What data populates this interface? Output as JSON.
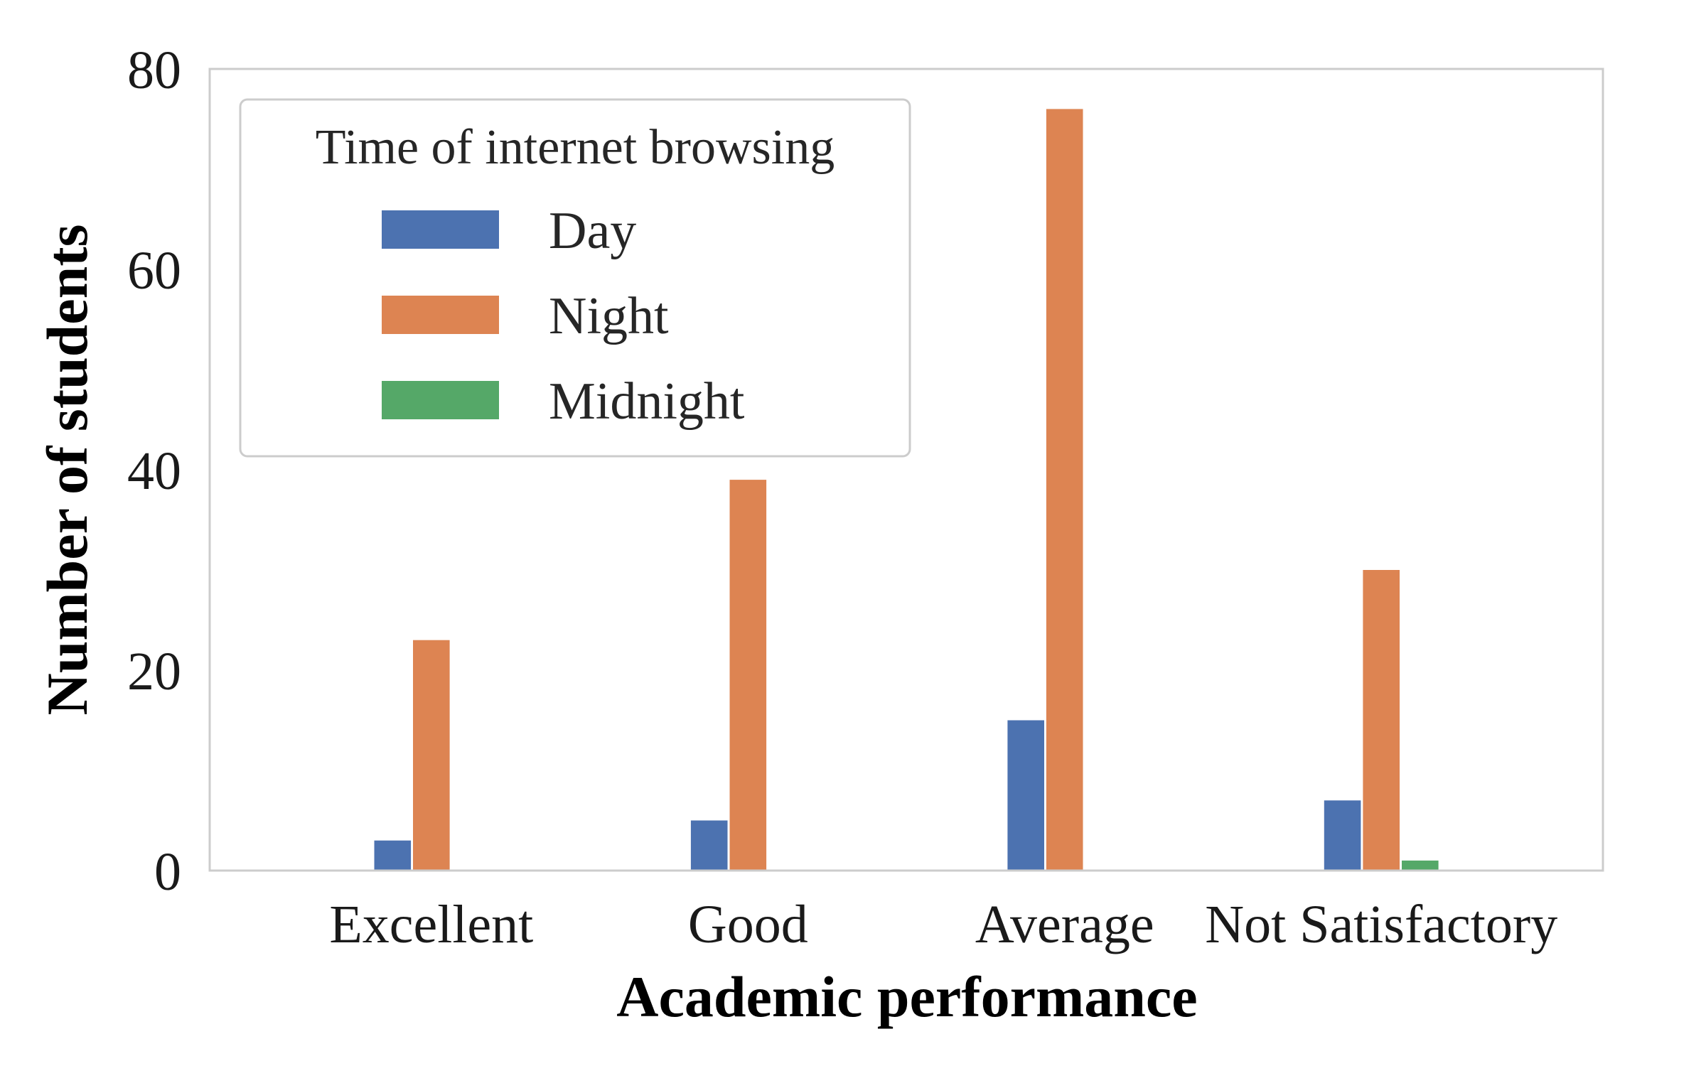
{
  "chart_data": {
    "type": "bar",
    "title": "",
    "xlabel": "Academic performance",
    "ylabel": "Number of students",
    "categories": [
      "Excellent",
      "Good",
      "Average",
      "Not Satisfactory"
    ],
    "series": [
      {
        "name": "Day",
        "values": [
          3,
          5,
          15,
          7
        ],
        "color": "#4c72b0"
      },
      {
        "name": "Night",
        "values": [
          23,
          39,
          76,
          30
        ],
        "color": "#dd8452"
      },
      {
        "name": "Midnight",
        "values": [
          0,
          0,
          0,
          1
        ],
        "color": "#55a868"
      }
    ],
    "ylim": [
      0,
      80
    ],
    "yticks": [
      "0",
      "20",
      "40",
      "60",
      "80"
    ],
    "grid": false,
    "legend": {
      "title": "Time of internet browsing",
      "placement": "top-left"
    }
  }
}
